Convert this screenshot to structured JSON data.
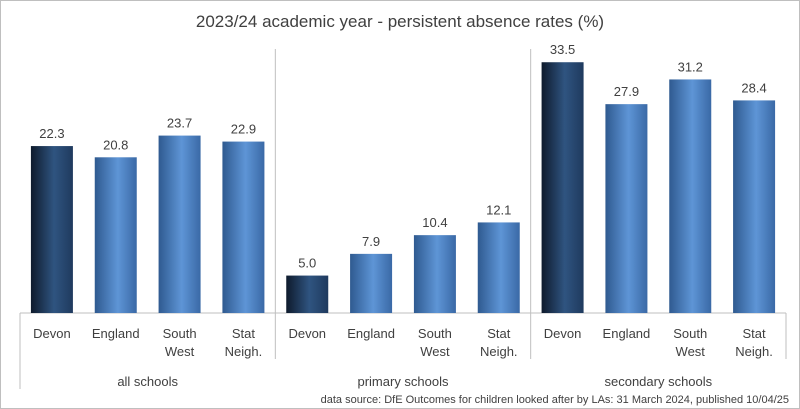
{
  "chart_data": {
    "type": "bar",
    "title": "2023/24 academic year - persistent absence rates (%)",
    "groups": [
      {
        "label": "all schools",
        "categories": [
          "Devon",
          "England",
          "South West",
          "Stat Neigh."
        ],
        "values": [
          22.3,
          20.8,
          23.7,
          22.9
        ]
      },
      {
        "label": "primary schools",
        "categories": [
          "Devon",
          "England",
          "South West",
          "Stat Neigh."
        ],
        "values": [
          5.0,
          7.9,
          10.4,
          12.1
        ]
      },
      {
        "label": "secondary schools",
        "categories": [
          "Devon",
          "England",
          "South West",
          "Stat Neigh."
        ],
        "values": [
          33.5,
          27.9,
          31.2,
          28.4
        ]
      }
    ],
    "ylim": [
      0,
      35
    ],
    "grid": false,
    "data_labels": true,
    "legend": "none",
    "colors": {
      "devon_dark": "#1b3050",
      "devon_light": "#2f5480",
      "other_dark": "#3a69a6",
      "other_light": "#5e95d6"
    },
    "source": "data source: DfE Outcomes for children looked after by LAs: 31 March 2024, published 10/04/25"
  }
}
